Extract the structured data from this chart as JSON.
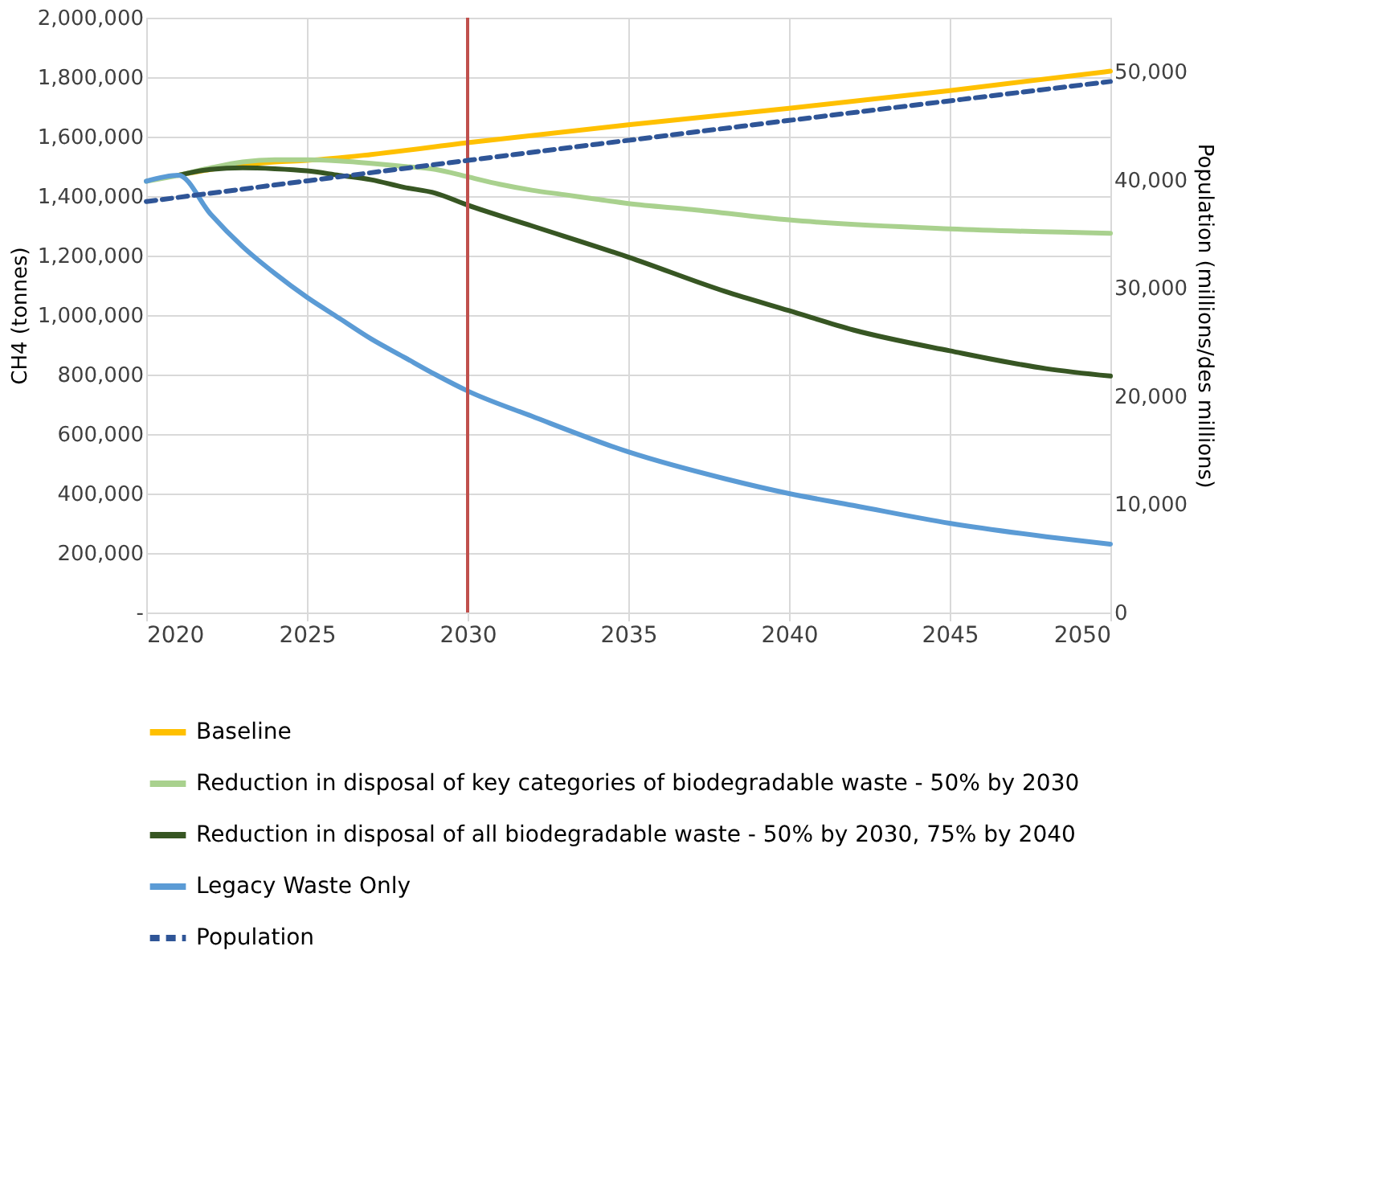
{
  "chart_data": {
    "type": "line",
    "ylabel": "CH4 (tonnes)",
    "y2label": "Population (millions/des millions)",
    "xlim": [
      2020,
      2050
    ],
    "xticks": [
      2020,
      2025,
      2030,
      2035,
      2040,
      2045,
      2050
    ],
    "ylim": [
      0,
      2000000
    ],
    "yticks": [
      {
        "value": 0,
        "label": "-"
      },
      {
        "value": 200000,
        "label": "200,000"
      },
      {
        "value": 400000,
        "label": "400,000"
      },
      {
        "value": 600000,
        "label": "600,000"
      },
      {
        "value": 800000,
        "label": "800,000"
      },
      {
        "value": 1000000,
        "label": "1,000,000"
      },
      {
        "value": 1200000,
        "label": "1,200,000"
      },
      {
        "value": 1400000,
        "label": "1,400,000"
      },
      {
        "value": 1600000,
        "label": "1,600,000"
      },
      {
        "value": 1800000,
        "label": "1,800,000"
      },
      {
        "value": 2000000,
        "label": "2,000,000"
      }
    ],
    "y2lim": [
      0,
      55000
    ],
    "y2ticks": [
      0,
      {
        "value": 10000,
        "label": "10,000"
      },
      {
        "value": 20000,
        "label": "20,000"
      },
      {
        "value": 30000,
        "label": "30,000"
      },
      {
        "value": 40000,
        "label": "40,000"
      },
      {
        "value": 50000,
        "label": "50,000"
      }
    ],
    "grid": true,
    "legend": "bottom",
    "line_style": "solid",
    "ref_lines": [
      {
        "axis": "x",
        "value": 2030,
        "label": null,
        "color": "#c0504d"
      }
    ],
    "series": [
      {
        "name": "Baseline",
        "color": "#ffc000",
        "x": [
          2021,
          2022,
          2023,
          2024,
          2025,
          2027,
          2030,
          2035,
          2040,
          2045,
          2050
        ],
        "values": [
          1470000,
          1490000,
          1505000,
          1515000,
          1520000,
          1540000,
          1580000,
          1640000,
          1695000,
          1755000,
          1820000
        ]
      },
      {
        "name": "Reduction in disposal of key categories of biodegradable waste - 50% by 2030",
        "color": "#a9d18e",
        "x": [
          2020,
          2021,
          2022,
          2023,
          2024,
          2025,
          2026,
          2027,
          2028,
          2029,
          2030,
          2031,
          2032,
          2033,
          2034,
          2035,
          2037,
          2040,
          2045,
          2050
        ],
        "values": [
          1450000,
          1470000,
          1495000,
          1515000,
          1522000,
          1522000,
          1518000,
          1510000,
          1500000,
          1490000,
          1465000,
          1440000,
          1420000,
          1405000,
          1390000,
          1375000,
          1355000,
          1320000,
          1290000,
          1275000
        ]
      },
      {
        "name": "Reduction in disposal of all biodegradable waste - 50% by 2030, 75% by 2040",
        "color": "#375623",
        "x": [
          2021,
          2022,
          2023,
          2024,
          2025,
          2026,
          2027,
          2028,
          2029,
          2030,
          2032,
          2035,
          2038,
          2040,
          2042,
          2045,
          2048,
          2050
        ],
        "values": [
          1470000,
          1490000,
          1495000,
          1492000,
          1485000,
          1470000,
          1455000,
          1430000,
          1410000,
          1370000,
          1300000,
          1195000,
          1080000,
          1015000,
          950000,
          880000,
          820000,
          795000
        ]
      },
      {
        "name": "Legacy Waste Only",
        "color": "#5b9bd5",
        "x": [
          2020,
          2021,
          2022,
          2023,
          2024,
          2025,
          2026,
          2027,
          2028,
          2029,
          2030,
          2032,
          2035,
          2038,
          2040,
          2042,
          2045,
          2048,
          2050
        ],
        "values": [
          1450000,
          1470000,
          1340000,
          1230000,
          1140000,
          1060000,
          990000,
          920000,
          860000,
          800000,
          745000,
          660000,
          540000,
          450000,
          400000,
          360000,
          300000,
          255000,
          230000
        ]
      },
      {
        "name": "Population",
        "color": "#2f5597",
        "axis": "y2",
        "line_style": "dashed",
        "x": [
          2020,
          2030,
          2040,
          2050
        ],
        "values": [
          38000,
          41800,
          45500,
          49100
        ]
      }
    ]
  }
}
